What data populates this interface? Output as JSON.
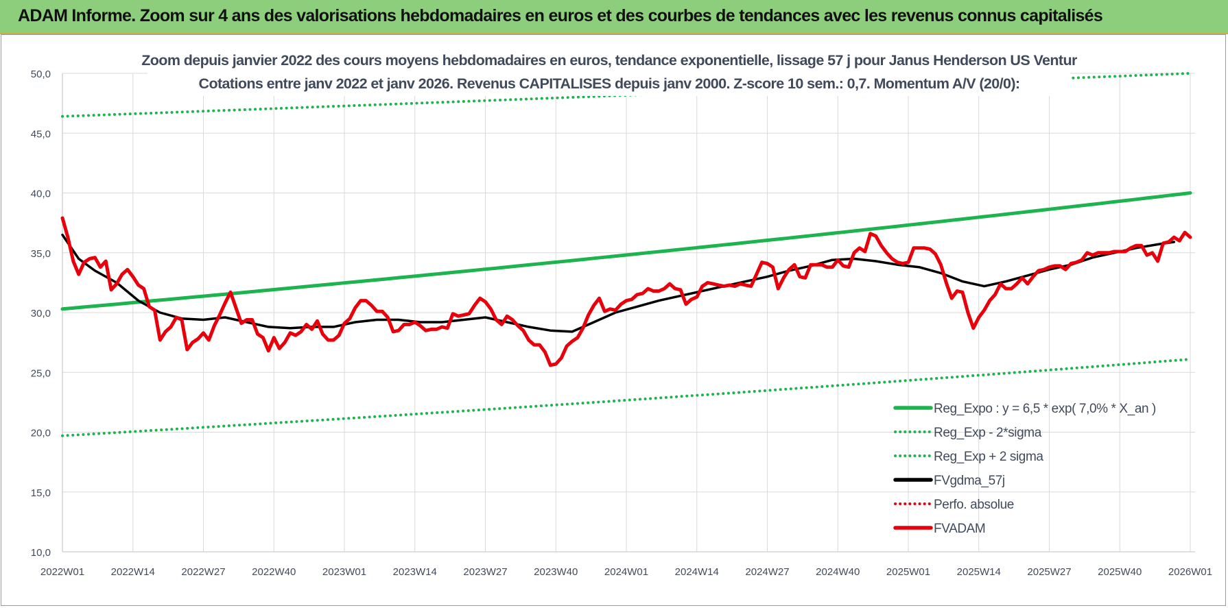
{
  "banner": {
    "title": "ADAM Informe. Zoom sur 4 ans des valorisations hebdomadaires en euros et des courbes de tendances avec les revenus connus capitalisés"
  },
  "chart_data": {
    "type": "line",
    "title": "Zoom depuis janvier 2022 des cours moyens hebdomadaires en euros, tendance exponentielle, lissage 57 j pour Janus Henderson US Ventur",
    "subtitle": "Cotations entre janv 2022 et janv 2026. Revenus CAPITALISES depuis janv 2000. Z-score 10 sem.: 0,7. Momentum A/V (20/0):",
    "xlabel": "",
    "ylabel": "",
    "ylim": [
      10,
      50
    ],
    "yticks": [
      "10,0",
      "15,0",
      "20,0",
      "25,0",
      "30,0",
      "35,0",
      "40,0",
      "45,0",
      "50,0"
    ],
    "xticks": [
      "2022W01",
      "2022W14",
      "2022W27",
      "2022W40",
      "2023W01",
      "2023W14",
      "2023W27",
      "2023W40",
      "2024W01",
      "2024W14",
      "2024W27",
      "2024W40",
      "2025W01",
      "2025W14",
      "2025W27",
      "2025W40",
      "2026W01"
    ],
    "grid": true,
    "legend_position": "bottom-right",
    "series": [
      {
        "name": "Reg_Expo : y = 6,5 * exp( 7,0% *  X_an )",
        "color": "#1db34f",
        "style": "solid",
        "start": 30.3,
        "end": 40.0
      },
      {
        "name": "Reg_Exp - 2*sigma",
        "color": "#1db34f",
        "style": "dotted",
        "start": 19.7,
        "end": 26.1
      },
      {
        "name": "Reg_Exp + 2 sigma",
        "color": "#1db34f",
        "style": "dotted",
        "start": 46.4,
        "end": 50.0
      },
      {
        "name": "FVgdma_57j",
        "color": "#000000",
        "style": "solid",
        "points": [
          [
            0,
            36.5
          ],
          [
            3,
            34.5
          ],
          [
            6,
            33.5
          ],
          [
            10,
            32.5
          ],
          [
            14,
            31.0
          ],
          [
            18,
            30.0
          ],
          [
            22,
            29.5
          ],
          [
            26,
            29.4
          ],
          [
            30,
            29.6
          ],
          [
            34,
            29.2
          ],
          [
            38,
            28.8
          ],
          [
            42,
            28.7
          ],
          [
            46,
            28.8
          ],
          [
            50,
            28.8
          ],
          [
            54,
            29.2
          ],
          [
            58,
            29.4
          ],
          [
            62,
            29.4
          ],
          [
            66,
            29.2
          ],
          [
            70,
            29.2
          ],
          [
            74,
            29.4
          ],
          [
            78,
            29.6
          ],
          [
            82,
            29.2
          ],
          [
            86,
            28.8
          ],
          [
            90,
            28.5
          ],
          [
            94,
            28.4
          ],
          [
            98,
            29.2
          ],
          [
            102,
            30.0
          ],
          [
            106,
            30.5
          ],
          [
            110,
            31.0
          ],
          [
            114,
            31.4
          ],
          [
            118,
            31.8
          ],
          [
            122,
            32.2
          ],
          [
            126,
            32.6
          ],
          [
            130,
            33.0
          ],
          [
            134,
            33.5
          ],
          [
            138,
            33.9
          ],
          [
            142,
            34.4
          ],
          [
            146,
            34.5
          ],
          [
            150,
            34.3
          ],
          [
            154,
            34.0
          ],
          [
            158,
            33.8
          ],
          [
            162,
            33.3
          ],
          [
            166,
            32.6
          ],
          [
            170,
            32.2
          ],
          [
            174,
            32.6
          ],
          [
            178,
            33.1
          ],
          [
            182,
            33.6
          ],
          [
            186,
            34.0
          ],
          [
            190,
            34.6
          ],
          [
            194,
            35.0
          ],
          [
            198,
            35.4
          ],
          [
            202,
            35.7
          ],
          [
            205,
            35.9
          ]
        ]
      },
      {
        "name": "Perfo. absolue",
        "color": "#e8000b",
        "style": "dotted",
        "points": []
      },
      {
        "name": "FVADAM",
        "color": "#e8000b",
        "style": "solid",
        "points": [
          [
            0,
            37.9
          ],
          [
            1,
            36.3
          ],
          [
            2,
            34.3
          ],
          [
            3,
            33.2
          ],
          [
            4,
            34.2
          ],
          [
            5,
            34.5
          ],
          [
            6,
            34.6
          ],
          [
            7,
            33.8
          ],
          [
            8,
            34.3
          ],
          [
            9,
            31.9
          ],
          [
            10,
            32.4
          ],
          [
            11,
            33.2
          ],
          [
            12,
            33.6
          ],
          [
            13,
            33.0
          ],
          [
            14,
            32.3
          ],
          [
            15,
            32.0
          ],
          [
            16,
            30.5
          ],
          [
            17,
            30.2
          ],
          [
            18,
            27.7
          ],
          [
            19,
            28.4
          ],
          [
            20,
            28.8
          ],
          [
            21,
            29.6
          ],
          [
            22,
            29.4
          ],
          [
            23,
            26.9
          ],
          [
            24,
            27.5
          ],
          [
            25,
            27.8
          ],
          [
            26,
            28.3
          ],
          [
            27,
            27.7
          ],
          [
            28,
            28.9
          ],
          [
            29,
            29.8
          ],
          [
            30,
            30.8
          ],
          [
            31,
            31.7
          ],
          [
            32,
            30.4
          ],
          [
            33,
            29.1
          ],
          [
            34,
            29.4
          ],
          [
            35,
            29.4
          ],
          [
            36,
            28.2
          ],
          [
            37,
            27.9
          ],
          [
            38,
            26.8
          ],
          [
            39,
            27.9
          ],
          [
            40,
            27.0
          ],
          [
            41,
            27.5
          ],
          [
            42,
            28.3
          ],
          [
            43,
            28.1
          ],
          [
            44,
            28.4
          ],
          [
            45,
            29.0
          ],
          [
            46,
            28.6
          ],
          [
            47,
            29.3
          ],
          [
            48,
            28.2
          ],
          [
            49,
            27.7
          ],
          [
            50,
            27.7
          ],
          [
            51,
            28.1
          ],
          [
            52,
            29.1
          ],
          [
            53,
            29.5
          ],
          [
            54,
            30.4
          ],
          [
            55,
            31.0
          ],
          [
            56,
            31.0
          ],
          [
            57,
            30.6
          ],
          [
            58,
            30.1
          ],
          [
            59,
            30.1
          ],
          [
            60,
            29.6
          ],
          [
            61,
            28.4
          ],
          [
            62,
            28.5
          ],
          [
            63,
            29.0
          ],
          [
            64,
            29.0
          ],
          [
            65,
            29.2
          ],
          [
            66,
            28.9
          ],
          [
            67,
            28.5
          ],
          [
            68,
            28.6
          ],
          [
            69,
            28.6
          ],
          [
            70,
            28.8
          ],
          [
            71,
            28.7
          ],
          [
            72,
            29.9
          ],
          [
            73,
            29.7
          ],
          [
            74,
            29.8
          ],
          [
            75,
            29.9
          ],
          [
            76,
            30.6
          ],
          [
            77,
            31.2
          ],
          [
            78,
            30.9
          ],
          [
            79,
            30.3
          ],
          [
            80,
            29.4
          ],
          [
            81,
            29.0
          ],
          [
            82,
            29.7
          ],
          [
            83,
            29.4
          ],
          [
            84,
            28.9
          ],
          [
            85,
            28.5
          ],
          [
            86,
            27.7
          ],
          [
            87,
            27.3
          ],
          [
            88,
            27.3
          ],
          [
            89,
            26.7
          ],
          [
            90,
            25.6
          ],
          [
            91,
            25.7
          ],
          [
            92,
            26.2
          ],
          [
            93,
            27.2
          ],
          [
            94,
            27.6
          ],
          [
            95,
            27.9
          ],
          [
            96,
            28.7
          ],
          [
            97,
            29.8
          ],
          [
            98,
            30.6
          ],
          [
            99,
            31.2
          ],
          [
            100,
            30.1
          ],
          [
            101,
            30.3
          ],
          [
            102,
            30.2
          ],
          [
            103,
            30.7
          ],
          [
            104,
            31.0
          ],
          [
            105,
            31.1
          ],
          [
            106,
            31.5
          ],
          [
            107,
            31.6
          ],
          [
            108,
            32.0
          ],
          [
            109,
            31.8
          ],
          [
            110,
            31.8
          ],
          [
            111,
            32.0
          ],
          [
            112,
            32.4
          ],
          [
            113,
            32.0
          ],
          [
            114,
            31.9
          ],
          [
            115,
            30.7
          ],
          [
            116,
            31.1
          ],
          [
            117,
            31.3
          ],
          [
            118,
            32.2
          ],
          [
            119,
            32.5
          ],
          [
            120,
            32.4
          ],
          [
            121,
            32.3
          ],
          [
            122,
            32.2
          ],
          [
            123,
            32.3
          ],
          [
            124,
            32.2
          ],
          [
            125,
            32.4
          ],
          [
            126,
            32.3
          ],
          [
            127,
            32.2
          ],
          [
            128,
            33.2
          ],
          [
            129,
            34.2
          ],
          [
            130,
            34.1
          ],
          [
            131,
            33.8
          ],
          [
            132,
            32.0
          ],
          [
            133,
            32.9
          ],
          [
            134,
            33.6
          ],
          [
            135,
            34.0
          ],
          [
            136,
            33.0
          ],
          [
            137,
            32.9
          ],
          [
            138,
            34.0
          ],
          [
            139,
            34.0
          ],
          [
            140,
            34.0
          ],
          [
            141,
            33.8
          ],
          [
            142,
            33.8
          ],
          [
            143,
            34.4
          ],
          [
            144,
            33.9
          ],
          [
            145,
            33.8
          ],
          [
            146,
            35.0
          ],
          [
            147,
            35.4
          ],
          [
            148,
            35.1
          ],
          [
            149,
            36.6
          ],
          [
            150,
            36.4
          ],
          [
            151,
            35.6
          ],
          [
            152,
            35.0
          ],
          [
            153,
            34.5
          ],
          [
            154,
            34.2
          ],
          [
            155,
            34.1
          ],
          [
            156,
            34.2
          ],
          [
            157,
            35.4
          ],
          [
            158,
            35.4
          ],
          [
            159,
            35.4
          ],
          [
            160,
            35.3
          ],
          [
            161,
            34.9
          ],
          [
            162,
            34.0
          ],
          [
            163,
            32.5
          ],
          [
            164,
            31.2
          ],
          [
            165,
            31.8
          ],
          [
            166,
            31.7
          ],
          [
            167,
            30.0
          ],
          [
            168,
            28.7
          ],
          [
            169,
            29.6
          ],
          [
            170,
            30.2
          ],
          [
            171,
            31.0
          ],
          [
            172,
            31.5
          ],
          [
            173,
            32.4
          ],
          [
            174,
            32.0
          ],
          [
            175,
            32.0
          ],
          [
            176,
            32.4
          ],
          [
            177,
            32.9
          ],
          [
            178,
            32.4
          ],
          [
            179,
            33.0
          ],
          [
            180,
            33.5
          ],
          [
            181,
            33.6
          ],
          [
            182,
            33.8
          ],
          [
            183,
            33.9
          ],
          [
            184,
            33.9
          ],
          [
            185,
            33.6
          ],
          [
            186,
            34.1
          ],
          [
            187,
            34.2
          ],
          [
            188,
            34.4
          ],
          [
            189,
            35.0
          ],
          [
            190,
            34.8
          ],
          [
            191,
            35.0
          ],
          [
            192,
            35.0
          ],
          [
            193,
            35.0
          ],
          [
            194,
            35.1
          ],
          [
            195,
            35.1
          ],
          [
            196,
            35.1
          ],
          [
            197,
            35.4
          ],
          [
            198,
            35.6
          ],
          [
            199,
            35.6
          ],
          [
            200,
            34.8
          ],
          [
            201,
            35.0
          ],
          [
            202,
            34.3
          ],
          [
            203,
            35.8
          ],
          [
            204,
            35.9
          ],
          [
            205,
            36.3
          ],
          [
            206,
            36.0
          ],
          [
            207,
            36.7
          ],
          [
            208,
            36.3
          ]
        ]
      }
    ]
  }
}
